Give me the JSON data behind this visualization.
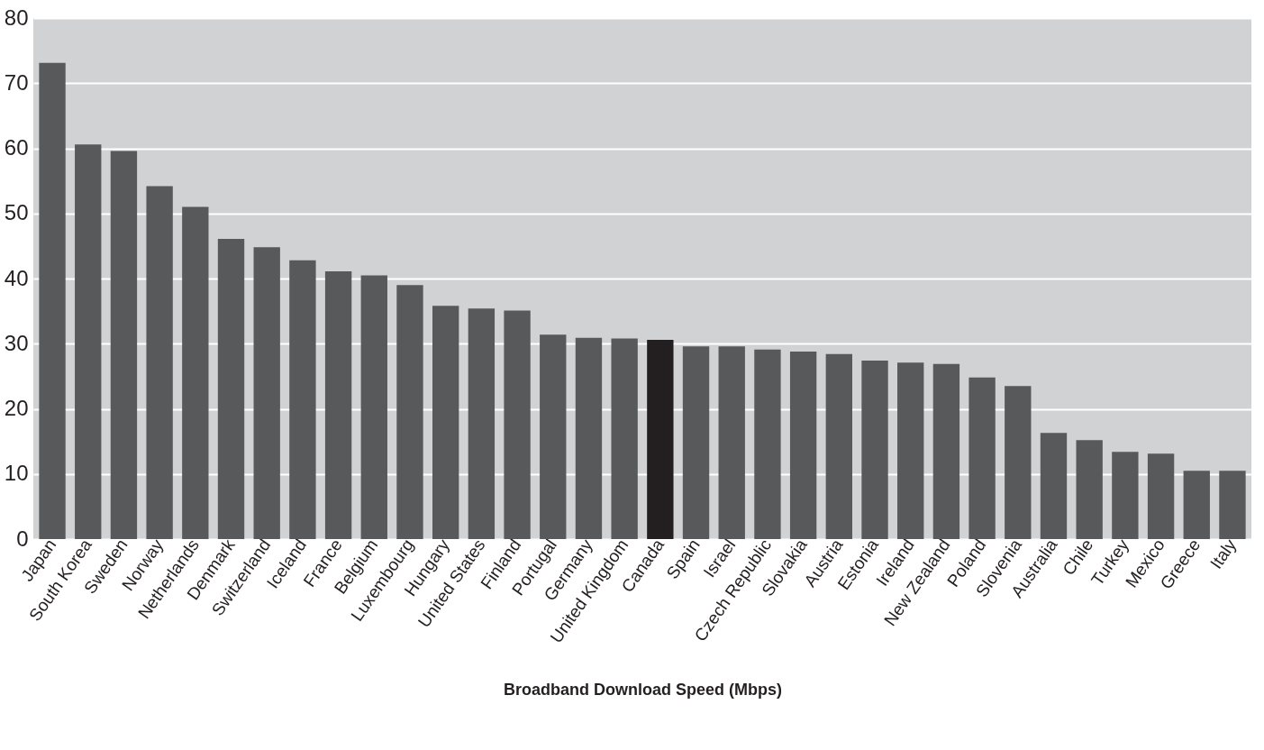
{
  "chart_data": {
    "type": "bar",
    "xlabel": "Broadband Download Speed (Mbps)",
    "categories": [
      "Japan",
      "South Korea",
      "Sweden",
      "Norway",
      "Netherlands",
      "Denmark",
      "Switzerland",
      "Iceland",
      "France",
      "Belgium",
      "Luxembourg",
      "Hungary",
      "United States",
      "Finland",
      "Portugal",
      "Germany",
      "United Kingdom",
      "Canada",
      "Spain",
      "Israel",
      "Czech Republic",
      "Slovakia",
      "Austria",
      "Estonia",
      "Ireland",
      "New Zealand",
      "Poland",
      "Slovenia",
      "Australia",
      "Chile",
      "Turkey",
      "Mexico",
      "Greece",
      "Italy"
    ],
    "values": [
      73.1,
      60.6,
      59.6,
      54.2,
      51.0,
      46.1,
      44.8,
      42.8,
      41.1,
      40.5,
      39.0,
      35.8,
      35.4,
      35.1,
      31.4,
      30.9,
      30.8,
      30.6,
      29.6,
      29.6,
      29.1,
      28.8,
      28.4,
      27.4,
      27.1,
      26.9,
      24.8,
      23.5,
      16.3,
      15.2,
      13.4,
      13.1,
      10.5,
      10.5
    ],
    "colors": [
      "#58595b",
      "#58595b",
      "#58595b",
      "#58595b",
      "#58595b",
      "#58595b",
      "#58595b",
      "#58595b",
      "#58595b",
      "#58595b",
      "#58595b",
      "#58595b",
      "#58595b",
      "#58595b",
      "#58595b",
      "#58595b",
      "#58595b",
      "#231f20",
      "#58595b",
      "#58595b",
      "#58595b",
      "#58595b",
      "#58595b",
      "#58595b",
      "#58595b",
      "#58595b",
      "#58595b",
      "#58595b",
      "#58595b",
      "#58595b",
      "#58595b",
      "#58595b",
      "#58595b",
      "#58595b"
    ],
    "ylim": [
      0,
      80
    ],
    "yticks": [
      0,
      10,
      20,
      30,
      40,
      50,
      60,
      70,
      80
    ],
    "grid": "y"
  }
}
